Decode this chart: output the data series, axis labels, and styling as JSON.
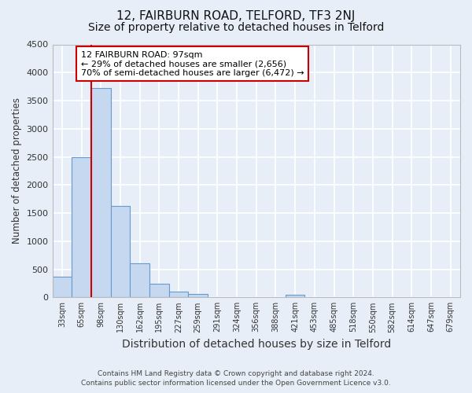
{
  "title": "12, FAIRBURN ROAD, TELFORD, TF3 2NJ",
  "subtitle": "Size of property relative to detached houses in Telford",
  "xlabel": "Distribution of detached houses by size in Telford",
  "ylabel": "Number of detached properties",
  "bin_labels": [
    "33sqm",
    "65sqm",
    "98sqm",
    "130sqm",
    "162sqm",
    "195sqm",
    "227sqm",
    "259sqm",
    "291sqm",
    "324sqm",
    "356sqm",
    "388sqm",
    "421sqm",
    "453sqm",
    "485sqm",
    "518sqm",
    "550sqm",
    "582sqm",
    "614sqm",
    "647sqm",
    "679sqm"
  ],
  "bar_values": [
    370,
    2500,
    3720,
    1620,
    600,
    240,
    100,
    60,
    0,
    0,
    0,
    0,
    50,
    0,
    0,
    0,
    0,
    0,
    0,
    0,
    0
  ],
  "bar_color": "#c5d8f0",
  "bar_edge_color": "#6699cc",
  "annotation_text": "12 FAIRBURN ROAD: 97sqm\n← 29% of detached houses are smaller (2,656)\n70% of semi-detached houses are larger (6,472) →",
  "annotation_box_color": "#ffffff",
  "annotation_box_edge": "#cc0000",
  "vline_color": "#cc0000",
  "ylim": [
    0,
    4500
  ],
  "yticks": [
    0,
    500,
    1000,
    1500,
    2000,
    2500,
    3000,
    3500,
    4000,
    4500
  ],
  "footer_line1": "Contains HM Land Registry data © Crown copyright and database right 2024.",
  "footer_line2": "Contains public sector information licensed under the Open Government Licence v3.0.",
  "bg_color": "#e8eef8",
  "grid_color": "#ffffff",
  "title_fontsize": 11,
  "subtitle_fontsize": 10,
  "xlabel_fontsize": 10,
  "ylabel_fontsize": 8.5
}
